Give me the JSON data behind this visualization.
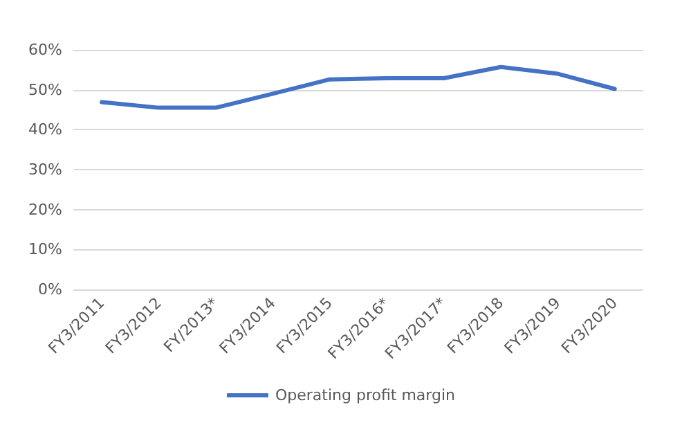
{
  "chart_data": {
    "type": "line",
    "categories": [
      "FY3/2011",
      "FY3/2012",
      "FY/2013*",
      "FY3/2014",
      "FY3/2015",
      "FY3/2016*",
      "FY3/2017*",
      "FY3/2018",
      "FY3/2019",
      "FY3/2020"
    ],
    "series": [
      {
        "name": "Operating profit margin",
        "color": "#4472c4",
        "values": [
          46.9,
          45.5,
          45.5,
          49.0,
          52.6,
          52.9,
          52.9,
          55.7,
          54.0,
          50.2
        ]
      }
    ],
    "ylim": [
      0,
      60
    ],
    "yticks": [
      {
        "value": 0,
        "label": "0%"
      },
      {
        "value": 10,
        "label": "10%"
      },
      {
        "value": 20,
        "label": "20%"
      },
      {
        "value": 30,
        "label": "30%"
      },
      {
        "value": 40,
        "label": "40%"
      },
      {
        "value": 50,
        "label": "50%"
      },
      {
        "value": 60,
        "label": "60%"
      }
    ],
    "grid": "y",
    "legend": "bottom",
    "marker": "none",
    "line_style": "solid"
  }
}
